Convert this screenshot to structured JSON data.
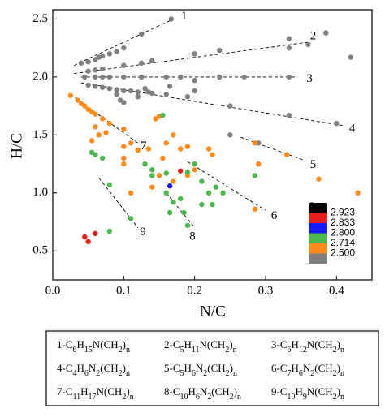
{
  "chart_data": {
    "type": "scatter",
    "xlabel": "N/C",
    "ylabel": "H/C",
    "xlim": [
      0,
      0.45
    ],
    "ylim": [
      0.25,
      2.58
    ],
    "xticks": [
      {
        "value": 0,
        "label": "0.0"
      },
      0.1,
      0.2,
      0.3,
      0.4
    ],
    "yticks": [
      0.5,
      {
        "value": 1,
        "label": "1.0"
      },
      1.5,
      {
        "value": 2,
        "label": "2.0"
      },
      2.5
    ],
    "series": [
      {
        "color": "#7f7f7f",
        "x": [
          0.04,
          0.05,
          0.06,
          0.065,
          0.07,
          0.08,
          0.09,
          0.1,
          0.125,
          0.167,
          0.05,
          0.06,
          0.07,
          0.1,
          0.125,
          0.14,
          0.2,
          0.235,
          0.333,
          0.333,
          0.36,
          0.385,
          0.42,
          0.045,
          0.06,
          0.07,
          0.08,
          0.1,
          0.125,
          0.16,
          0.18,
          0.2,
          0.235,
          0.27,
          0.333,
          0.05,
          0.06,
          0.07,
          0.08,
          0.09,
          0.1,
          0.11,
          0.12,
          0.135,
          0.14,
          0.16,
          0.19,
          0.25,
          0.333,
          0.4,
          0.09,
          0.095,
          0.1,
          0.12,
          0.13,
          0.165,
          0.2,
          0.25,
          0.29,
          0.365
        ],
        "values": [
          2.12,
          2.13,
          2.15,
          2.17,
          2.18,
          2.2,
          2.22,
          2.25,
          2.37,
          2.5,
          2.05,
          2.06,
          2.07,
          2.1,
          2.12,
          2.14,
          2.2,
          2.23,
          2.33,
          2.25,
          2.28,
          2.38,
          2.17,
          2.0,
          2.0,
          2.0,
          2.0,
          2.0,
          2.0,
          2.0,
          2.0,
          1.97,
          2.0,
          2.0,
          2.0,
          1.93,
          1.92,
          1.91,
          1.9,
          1.89,
          1.88,
          1.88,
          1.87,
          1.87,
          1.86,
          1.85,
          1.83,
          1.75,
          1.67,
          1.6,
          1.85,
          1.8,
          1.78,
          1.83,
          1.9,
          1.92,
          1.88,
          1.5,
          1.43,
          0.9
        ]
      },
      {
        "color": "#ff8c1a",
        "x": [
          0.025,
          0.035,
          0.04,
          0.045,
          0.05,
          0.055,
          0.06,
          0.07,
          0.08,
          0.06,
          0.065,
          0.075,
          0.055,
          0.1,
          0.1,
          0.11,
          0.1,
          0.1,
          0.12,
          0.135,
          0.145,
          0.15,
          0.155,
          0.17,
          0.16,
          0.18,
          0.19,
          0.22,
          0.225,
          0.2,
          0.17,
          0.19,
          0.11,
          0.14,
          0.15,
          0.285,
          0.33,
          0.375,
          0.43,
          0.285,
          0.29
        ],
        "values": [
          1.84,
          1.8,
          1.77,
          1.75,
          1.72,
          1.7,
          1.68,
          1.64,
          1.6,
          1.57,
          1.5,
          1.52,
          1.45,
          1.55,
          1.4,
          1.43,
          1.3,
          1.25,
          1.37,
          1.38,
          1.64,
          1.66,
          1.3,
          1.5,
          1.43,
          1.38,
          1.4,
          1.38,
          1.33,
          1.2,
          1.1,
          1.15,
          1.0,
          1.05,
          1.15,
          1.43,
          1.33,
          1.12,
          1.0,
          0.86,
          1.25
        ]
      },
      {
        "color": "#4cb84c",
        "x": [
          0.055,
          0.06,
          0.07,
          0.155,
          0.14,
          0.13,
          0.16,
          0.19,
          0.2,
          0.22,
          0.21,
          0.23,
          0.24,
          0.16,
          0.17,
          0.18,
          0.165,
          0.225,
          0.185,
          0.19,
          0.21,
          0.11,
          0.08,
          0.08,
          0.14,
          0.285
        ],
        "values": [
          1.35,
          1.33,
          1.3,
          1.67,
          1.2,
          1.25,
          1.17,
          1.18,
          1.25,
          1.0,
          1.1,
          1.05,
          1.0,
          1.0,
          0.92,
          0.95,
          0.83,
          0.9,
          0.83,
          0.72,
          0.9,
          0.78,
          1.07,
          0.67,
          1.15,
          1.15
        ]
      },
      {
        "color": "#e8201a",
        "x": [
          0.045,
          0.05,
          0.06,
          0.18
        ],
        "values": [
          0.62,
          0.58,
          0.65,
          1.19
        ]
      },
      {
        "color": "#1a1aff",
        "x": [
          0.165
        ],
        "values": [
          1.06
        ]
      }
    ],
    "lines": [
      {
        "label": "1",
        "x": [
          0.03,
          0.17
        ],
        "y": [
          2.1,
          2.5
        ],
        "label_x": 0.185,
        "label_y": 2.52
      },
      {
        "label": "2",
        "x": [
          0.03,
          0.36
        ],
        "y": [
          2.03,
          2.3
        ],
        "label_x": 0.367,
        "label_y": 2.35
      },
      {
        "label": "3",
        "x": [
          0.04,
          0.345
        ],
        "y": [
          2.0,
          2.0
        ],
        "label_x": 0.362,
        "label_y": 1.98
      },
      {
        "label": "4",
        "x": [
          0.04,
          0.41
        ],
        "y": [
          1.95,
          1.58
        ],
        "label_x": 0.422,
        "label_y": 1.55
      },
      {
        "label": "5",
        "x": [
          0.265,
          0.355
        ],
        "y": [
          1.48,
          1.28
        ],
        "label_x": 0.367,
        "label_y": 1.24
      },
      {
        "label": "6",
        "x": [
          0.19,
          0.3
        ],
        "y": [
          1.27,
          0.85
        ],
        "label_x": 0.312,
        "label_y": 0.8
      },
      {
        "label": "7",
        "x": [
          0.025,
          0.12
        ],
        "y": [
          1.85,
          1.43
        ],
        "label_x": 0.128,
        "label_y": 1.4
      },
      {
        "label": "8",
        "x": [
          0.16,
          0.2
        ],
        "y": [
          1.0,
          0.7
        ],
        "label_x": 0.197,
        "label_y": 0.62
      },
      {
        "label": "9",
        "x": [
          0.065,
          0.12
        ],
        "y": [
          1.13,
          0.7
        ],
        "label_x": 0.127,
        "label_y": 0.66
      }
    ],
    "colorbar": {
      "colors": [
        "#000000",
        "#e8201a",
        "#1a1aff",
        "#4cb84c",
        "#ff8c1a",
        "#7f7f7f"
      ],
      "labels": [
        "2.923",
        "2.833",
        "2.800",
        "2.714",
        "2.500"
      ]
    },
    "legend_box": [
      "1-C6H15N(CH2)n",
      "2-C5H11N(CH2)n",
      "3-C6H12N(CH2)n",
      "4-C4H6N2(CH2)n",
      "5-C5H6N2(CH2)n",
      "6-C7H6N2(CH2)n",
      "7-C11H17N(CH2)n",
      "8-C10H6N2(CH2)n",
      "9-C10H9N(CH2)n"
    ]
  }
}
